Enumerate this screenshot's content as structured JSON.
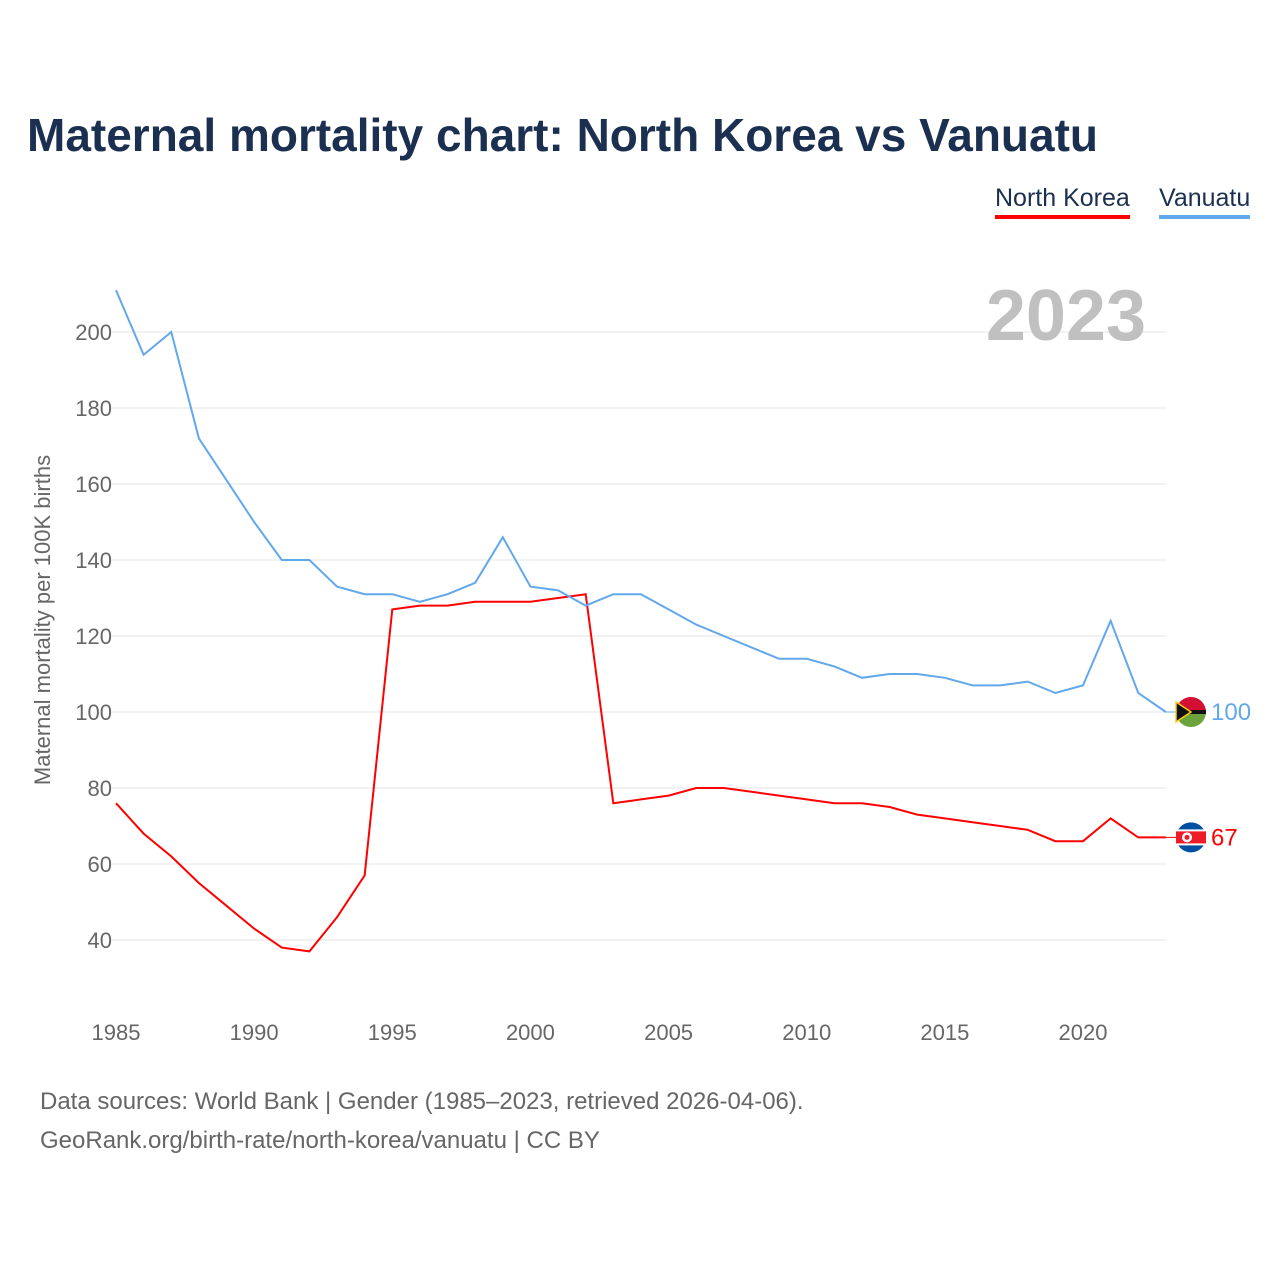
{
  "title": "Maternal mortality chart: North Korea vs Vanuatu",
  "footer": {
    "line1": "Data sources: World Bank | Gender (1985–2023, retrieved 2026-04-06).",
    "line2": "GeoRank.org/birth-rate/north-korea/vanuatu | CC BY"
  },
  "chart_data": {
    "type": "line",
    "title": "Maternal mortality chart: North Korea vs Vanuatu",
    "ylabel": "Maternal mortality per 100K births",
    "xlabel": "",
    "year_label": "2023",
    "xlim": [
      1985,
      2023
    ],
    "ylim": [
      28,
      215
    ],
    "xticks": [
      1985,
      1990,
      1995,
      2000,
      2005,
      2010,
      2015,
      2020
    ],
    "yticks": [
      40,
      60,
      80,
      100,
      120,
      140,
      160,
      180,
      200
    ],
    "grid": true,
    "legend_position": "top-right",
    "x": [
      1985,
      1986,
      1987,
      1988,
      1989,
      1990,
      1991,
      1992,
      1993,
      1994,
      1995,
      1996,
      1997,
      1998,
      1999,
      2000,
      2001,
      2002,
      2003,
      2004,
      2005,
      2006,
      2007,
      2008,
      2009,
      2010,
      2011,
      2012,
      2013,
      2014,
      2015,
      2016,
      2017,
      2018,
      2019,
      2020,
      2021,
      2022,
      2023
    ],
    "series": [
      {
        "name": "North Korea",
        "color": "#ff0000",
        "end_label": "67",
        "values": [
          76,
          68,
          62,
          55,
          49,
          43,
          38,
          37,
          46,
          57,
          127,
          128,
          128,
          129,
          129,
          129,
          130,
          131,
          76,
          77,
          78,
          80,
          80,
          79,
          78,
          77,
          76,
          76,
          75,
          73,
          72,
          71,
          70,
          69,
          66,
          66,
          72,
          67,
          67
        ]
      },
      {
        "name": "Vanuatu",
        "color": "#62a8ea",
        "end_label": "100",
        "values": [
          211,
          194,
          200,
          172,
          161,
          150,
          140,
          140,
          133,
          131,
          131,
          129,
          131,
          134,
          146,
          133,
          132,
          128,
          131,
          131,
          127,
          123,
          120,
          117,
          114,
          114,
          112,
          109,
          110,
          110,
          109,
          107,
          107,
          108,
          105,
          107,
          124,
          105,
          100
        ]
      }
    ]
  }
}
